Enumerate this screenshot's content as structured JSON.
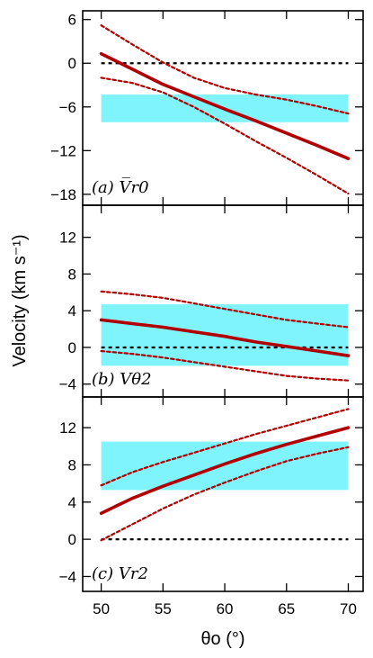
{
  "chart_data": {
    "type": "line",
    "ylabel": "Velocity (km s⁻¹)",
    "xlabel": "θo (°)",
    "xlim": [
      48.5,
      71.2
    ],
    "xticks": [
      50,
      55,
      60,
      65,
      70
    ],
    "colors": {
      "main": "#b00000",
      "band": "#80f4fc",
      "zero": "#000000"
    },
    "panels": [
      {
        "label": "(a) V̅r0",
        "ylim": [
          -19.5,
          7.2
        ],
        "yticks": [
          6,
          0,
          -6,
          -12,
          -18
        ],
        "band": [
          -8.1,
          -4.3
        ],
        "x": [
          50,
          52.5,
          55,
          57.5,
          60,
          62.5,
          65,
          67.5,
          70
        ],
        "series": [
          {
            "role": "main",
            "values": [
              1.3,
              -0.8,
              -2.9,
              -4.6,
              -6.3,
              -7.9,
              -9.6,
              -11.3,
              -13.1
            ]
          },
          {
            "role": "upper",
            "values": [
              5.2,
              2.6,
              0.1,
              -2.0,
              -3.4,
              -4.3,
              -5.0,
              -5.9,
              -6.9
            ]
          },
          {
            "role": "lower",
            "values": [
              -2.0,
              -2.7,
              -4.0,
              -6.0,
              -8.3,
              -10.7,
              -13.0,
              -15.4,
              -17.9
            ]
          }
        ]
      },
      {
        "label": "(b) Vθ2",
        "ylim": [
          -5.4,
          15.5
        ],
        "yticks": [
          12,
          8,
          4,
          0,
          -4
        ],
        "band": [
          -2.0,
          4.7
        ],
        "x": [
          50,
          52.5,
          55,
          57.5,
          60,
          62.5,
          65,
          67.5,
          70
        ],
        "series": [
          {
            "role": "main",
            "values": [
              3.0,
              2.6,
              2.2,
              1.7,
              1.2,
              0.6,
              0.1,
              -0.4,
              -0.9
            ]
          },
          {
            "role": "upper",
            "values": [
              6.1,
              5.8,
              5.4,
              4.8,
              4.2,
              3.6,
              3.0,
              2.6,
              2.2
            ]
          },
          {
            "role": "lower",
            "values": [
              -0.4,
              -0.7,
              -1.1,
              -1.6,
              -2.1,
              -2.6,
              -3.1,
              -3.4,
              -3.6
            ]
          }
        ]
      },
      {
        "label": "(c) Vr2",
        "ylim": [
          -5.6,
          15.3
        ],
        "yticks": [
          12,
          8,
          4,
          0,
          -4
        ],
        "band": [
          5.3,
          10.5
        ],
        "x": [
          50,
          52.5,
          55,
          57.5,
          60,
          62.5,
          65,
          67.5,
          70
        ],
        "series": [
          {
            "role": "main",
            "values": [
              2.8,
              4.4,
              5.7,
              6.9,
              8.1,
              9.2,
              10.2,
              11.1,
              12.0
            ]
          },
          {
            "role": "upper",
            "values": [
              5.8,
              7.2,
              8.3,
              9.3,
              10.3,
              11.3,
              12.2,
              13.1,
              14.0
            ]
          },
          {
            "role": "lower",
            "values": [
              -0.1,
              1.6,
              3.3,
              4.8,
              6.1,
              7.3,
              8.4,
              9.2,
              9.9
            ]
          }
        ]
      }
    ]
  }
}
